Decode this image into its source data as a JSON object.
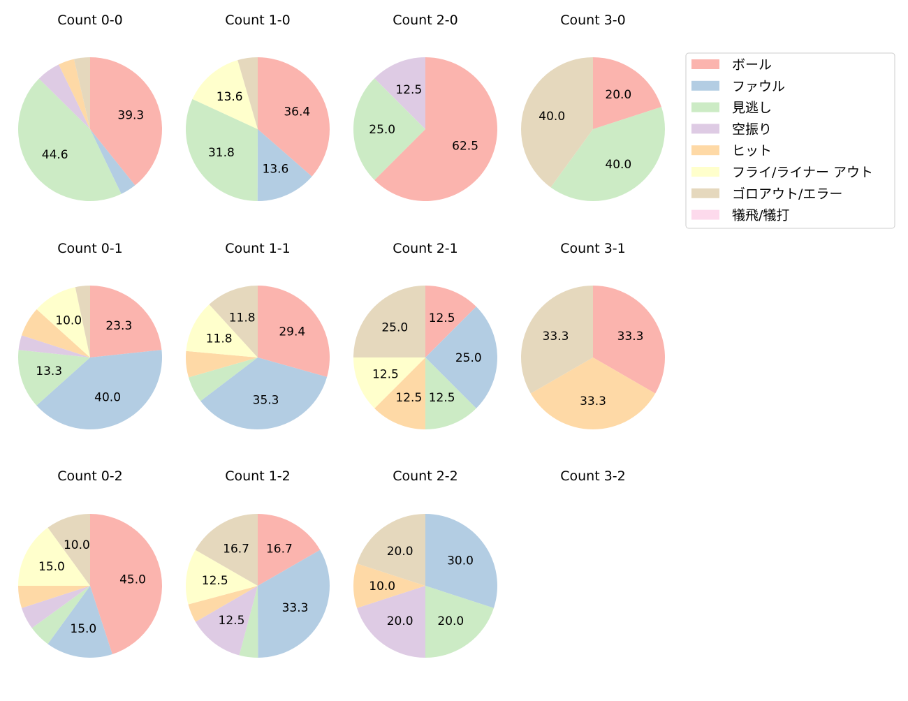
{
  "colors": [
    "#fbb4ae",
    "#b3cde3",
    "#ccebc5",
    "#decbe4",
    "#fed9a6",
    "#ffffcc",
    "#e5d8bd",
    "#fddaec"
  ],
  "chart_data": {
    "type": "pie",
    "legend": {
      "placement": "right",
      "entries": [
        "ボール",
        "ファウル",
        "見逃し",
        "空振り",
        "ヒット",
        "フライ/ライナー アウト",
        "ゴロアウト/エラー",
        "犠飛/犠打"
      ]
    },
    "label_min_percent": 10,
    "start_angle_deg": 90,
    "direction": "clockwise",
    "pies": [
      {
        "title": "Count 0-0",
        "values": [
          39.3,
          3.6,
          44.6,
          5.4,
          3.6,
          0,
          3.6,
          0
        ]
      },
      {
        "title": "Count 1-0",
        "values": [
          36.4,
          13.6,
          31.8,
          0,
          0,
          13.6,
          4.5,
          0
        ]
      },
      {
        "title": "Count 2-0",
        "values": [
          62.5,
          0,
          25.0,
          12.5,
          0,
          0,
          0,
          0
        ]
      },
      {
        "title": "Count 3-0",
        "values": [
          20.0,
          0,
          40.0,
          0,
          0,
          0,
          40.0,
          0
        ]
      },
      {
        "title": "Count 0-1",
        "values": [
          23.3,
          40.0,
          13.3,
          3.3,
          6.7,
          10.0,
          3.3,
          0
        ]
      },
      {
        "title": "Count 1-1",
        "values": [
          29.4,
          35.3,
          5.9,
          0,
          5.9,
          11.8,
          11.8,
          0
        ]
      },
      {
        "title": "Count 2-1",
        "values": [
          12.5,
          25.0,
          12.5,
          0,
          12.5,
          12.5,
          25.0,
          0
        ]
      },
      {
        "title": "Count 3-1",
        "values": [
          33.3,
          0,
          0,
          0,
          33.3,
          0,
          33.3,
          0
        ]
      },
      {
        "title": "Count 0-2",
        "values": [
          45.0,
          15.0,
          5.0,
          5.0,
          5.0,
          15.0,
          10.0,
          0
        ]
      },
      {
        "title": "Count 1-2",
        "values": [
          16.7,
          33.3,
          4.2,
          12.5,
          4.2,
          12.5,
          16.7,
          0
        ]
      },
      {
        "title": "Count 2-2",
        "values": [
          0,
          30.0,
          20.0,
          20.0,
          10.0,
          0,
          20.0,
          0
        ]
      },
      {
        "title": "Count 3-2",
        "values": [
          0,
          0,
          0,
          0,
          0,
          0,
          0,
          0
        ]
      }
    ]
  }
}
